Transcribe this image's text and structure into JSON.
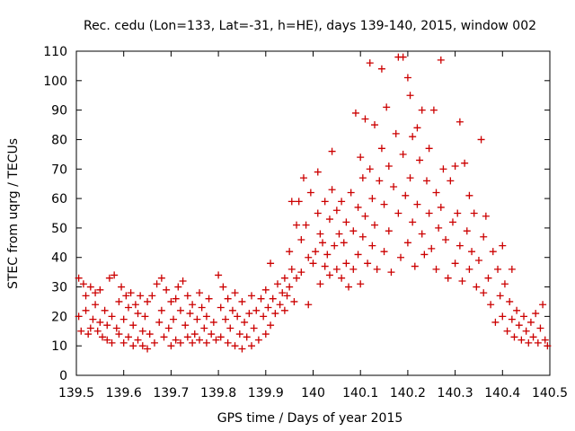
{
  "chart_data": {
    "type": "scatter",
    "title": "Rec. cedu (Lon=133, Lat=-31, h=HE), days 139-140, 2015, window 002",
    "xlabel": "GPS time / Days of year 2015",
    "ylabel": "STEC from uqrg / TECUs",
    "xlim": [
      139.5,
      140.5
    ],
    "ylim": [
      0,
      110
    ],
    "xticks": [
      139.5,
      139.6,
      139.7,
      139.8,
      139.9,
      140,
      140.1,
      140.2,
      140.3,
      140.4,
      140.5
    ],
    "xtick_labels": [
      "139.5",
      "139.6",
      "139.7",
      "139.8",
      "139.9",
      "140",
      "140.1",
      "140.2",
      "140.3",
      "140.4",
      "140.5"
    ],
    "yticks": [
      0,
      10,
      20,
      30,
      40,
      50,
      60,
      70,
      80,
      90,
      100,
      110
    ],
    "ytick_labels": [
      "0",
      "10",
      "20",
      "30",
      "40",
      "50",
      "60",
      "70",
      "80",
      "90",
      "100",
      "110"
    ],
    "marker": "+",
    "color": "#cc0000",
    "grid": false,
    "points": [
      [
        139.505,
        33
      ],
      [
        139.505,
        20
      ],
      [
        139.51,
        15
      ],
      [
        139.515,
        31
      ],
      [
        139.52,
        27
      ],
      [
        139.52,
        22
      ],
      [
        139.525,
        14
      ],
      [
        139.53,
        30
      ],
      [
        139.53,
        16
      ],
      [
        139.535,
        19
      ],
      [
        139.54,
        28
      ],
      [
        139.54,
        24
      ],
      [
        139.545,
        15
      ],
      [
        139.55,
        29
      ],
      [
        139.55,
        18
      ],
      [
        139.555,
        13
      ],
      [
        139.56,
        22
      ],
      [
        139.565,
        17
      ],
      [
        139.565,
        12
      ],
      [
        139.57,
        33
      ],
      [
        139.575,
        20
      ],
      [
        139.575,
        11
      ],
      [
        139.58,
        34
      ],
      [
        139.585,
        16
      ],
      [
        139.59,
        25
      ],
      [
        139.59,
        14
      ],
      [
        139.595,
        30
      ],
      [
        139.6,
        19
      ],
      [
        139.6,
        11
      ],
      [
        139.605,
        27
      ],
      [
        139.61,
        23
      ],
      [
        139.61,
        13
      ],
      [
        139.615,
        28
      ],
      [
        139.62,
        17
      ],
      [
        139.62,
        10
      ],
      [
        139.625,
        24
      ],
      [
        139.63,
        21
      ],
      [
        139.63,
        12
      ],
      [
        139.635,
        27
      ],
      [
        139.64,
        15
      ],
      [
        139.64,
        10
      ],
      [
        139.645,
        20
      ],
      [
        139.65,
        25
      ],
      [
        139.65,
        9
      ],
      [
        139.655,
        14
      ],
      [
        139.66,
        27
      ],
      [
        139.665,
        11
      ],
      [
        139.67,
        31
      ],
      [
        139.675,
        18
      ],
      [
        139.68,
        33
      ],
      [
        139.68,
        22
      ],
      [
        139.685,
        13
      ],
      [
        139.69,
        29
      ],
      [
        139.695,
        16
      ],
      [
        139.7,
        25
      ],
      [
        139.7,
        10
      ],
      [
        139.705,
        19
      ],
      [
        139.71,
        26
      ],
      [
        139.71,
        12
      ],
      [
        139.715,
        30
      ],
      [
        139.72,
        22
      ],
      [
        139.72,
        11
      ],
      [
        139.725,
        32
      ],
      [
        139.73,
        17
      ],
      [
        139.735,
        27
      ],
      [
        139.735,
        13
      ],
      [
        139.74,
        21
      ],
      [
        139.745,
        24
      ],
      [
        139.745,
        11
      ],
      [
        139.75,
        14
      ],
      [
        139.755,
        19
      ],
      [
        139.76,
        28
      ],
      [
        139.76,
        12
      ],
      [
        139.765,
        23
      ],
      [
        139.77,
        16
      ],
      [
        139.775,
        20
      ],
      [
        139.775,
        11
      ],
      [
        139.78,
        26
      ],
      [
        139.785,
        14
      ],
      [
        139.79,
        18
      ],
      [
        139.795,
        12
      ],
      [
        139.8,
        34
      ],
      [
        139.805,
        23
      ],
      [
        139.805,
        13
      ],
      [
        139.81,
        30
      ],
      [
        139.815,
        19
      ],
      [
        139.82,
        26
      ],
      [
        139.82,
        11
      ],
      [
        139.825,
        16
      ],
      [
        139.83,
        22
      ],
      [
        139.835,
        28
      ],
      [
        139.835,
        10
      ],
      [
        139.84,
        20
      ],
      [
        139.845,
        14
      ],
      [
        139.85,
        25
      ],
      [
        139.85,
        9
      ],
      [
        139.855,
        18
      ],
      [
        139.86,
        13
      ],
      [
        139.865,
        21
      ],
      [
        139.87,
        27
      ],
      [
        139.87,
        10
      ],
      [
        139.875,
        16
      ],
      [
        139.88,
        22
      ],
      [
        139.885,
        12
      ],
      [
        139.89,
        26
      ],
      [
        139.895,
        20
      ],
      [
        139.9,
        29
      ],
      [
        139.9,
        14
      ],
      [
        139.905,
        23
      ],
      [
        139.91,
        38
      ],
      [
        139.91,
        17
      ],
      [
        139.915,
        26
      ],
      [
        139.92,
        21
      ],
      [
        139.925,
        31
      ],
      [
        139.93,
        24
      ],
      [
        139.935,
        28
      ],
      [
        139.94,
        33
      ],
      [
        139.94,
        22
      ],
      [
        139.945,
        27
      ],
      [
        139.95,
        42
      ],
      [
        139.95,
        30
      ],
      [
        139.955,
        59
      ],
      [
        139.955,
        36
      ],
      [
        139.96,
        25
      ],
      [
        139.965,
        51
      ],
      [
        139.965,
        33
      ],
      [
        139.97,
        59
      ],
      [
        139.975,
        46
      ],
      [
        139.975,
        35
      ],
      [
        139.98,
        67
      ],
      [
        139.985,
        51
      ],
      [
        139.99,
        40
      ],
      [
        139.99,
        24
      ],
      [
        139.995,
        62
      ],
      [
        140.0,
        38
      ],
      [
        140.005,
        42
      ],
      [
        140.01,
        69
      ],
      [
        140.01,
        55
      ],
      [
        140.015,
        48
      ],
      [
        140.015,
        31
      ],
      [
        140.02,
        45
      ],
      [
        140.025,
        59
      ],
      [
        140.025,
        37
      ],
      [
        140.03,
        41
      ],
      [
        140.035,
        53
      ],
      [
        140.035,
        34
      ],
      [
        140.04,
        76
      ],
      [
        140.04,
        63
      ],
      [
        140.045,
        44
      ],
      [
        140.05,
        56
      ],
      [
        140.05,
        36
      ],
      [
        140.055,
        48
      ],
      [
        140.06,
        59
      ],
      [
        140.06,
        33
      ],
      [
        140.065,
        45
      ],
      [
        140.07,
        52
      ],
      [
        140.07,
        38
      ],
      [
        140.075,
        30
      ],
      [
        140.08,
        62
      ],
      [
        140.085,
        49
      ],
      [
        140.085,
        36
      ],
      [
        140.09,
        89
      ],
      [
        140.095,
        57
      ],
      [
        140.095,
        41
      ],
      [
        140.1,
        74
      ],
      [
        140.1,
        31
      ],
      [
        140.105,
        67
      ],
      [
        140.105,
        47
      ],
      [
        140.11,
        87
      ],
      [
        140.11,
        54
      ],
      [
        140.115,
        38
      ],
      [
        140.12,
        106
      ],
      [
        140.12,
        70
      ],
      [
        140.125,
        60
      ],
      [
        140.125,
        44
      ],
      [
        140.13,
        85
      ],
      [
        140.13,
        51
      ],
      [
        140.135,
        36
      ],
      [
        140.14,
        66
      ],
      [
        140.145,
        104
      ],
      [
        140.145,
        77
      ],
      [
        140.15,
        58
      ],
      [
        140.15,
        42
      ],
      [
        140.155,
        91
      ],
      [
        140.16,
        71
      ],
      [
        140.16,
        49
      ],
      [
        140.165,
        35
      ],
      [
        140.17,
        64
      ],
      [
        140.175,
        82
      ],
      [
        140.18,
        108
      ],
      [
        140.18,
        55
      ],
      [
        140.185,
        40
      ],
      [
        140.19,
        108
      ],
      [
        140.19,
        75
      ],
      [
        140.195,
        61
      ],
      [
        140.2,
        101
      ],
      [
        140.2,
        45
      ],
      [
        140.205,
        95
      ],
      [
        140.205,
        67
      ],
      [
        140.21,
        81
      ],
      [
        140.21,
        52
      ],
      [
        140.215,
        37
      ],
      [
        140.22,
        84
      ],
      [
        140.22,
        58
      ],
      [
        140.225,
        73
      ],
      [
        140.23,
        90
      ],
      [
        140.23,
        48
      ],
      [
        140.235,
        41
      ],
      [
        140.24,
        66
      ],
      [
        140.245,
        77
      ],
      [
        140.245,
        55
      ],
      [
        140.25,
        43
      ],
      [
        140.255,
        90
      ],
      [
        140.26,
        62
      ],
      [
        140.26,
        36
      ],
      [
        140.265,
        50
      ],
      [
        140.27,
        107
      ],
      [
        140.27,
        57
      ],
      [
        140.275,
        70
      ],
      [
        140.28,
        46
      ],
      [
        140.285,
        33
      ],
      [
        140.29,
        66
      ],
      [
        140.295,
        52
      ],
      [
        140.3,
        71
      ],
      [
        140.3,
        38
      ],
      [
        140.305,
        55
      ],
      [
        140.31,
        86
      ],
      [
        140.31,
        44
      ],
      [
        140.315,
        32
      ],
      [
        140.32,
        72
      ],
      [
        140.325,
        49
      ],
      [
        140.33,
        61
      ],
      [
        140.33,
        36
      ],
      [
        140.335,
        42
      ],
      [
        140.34,
        55
      ],
      [
        140.345,
        30
      ],
      [
        140.35,
        39
      ],
      [
        140.355,
        80
      ],
      [
        140.36,
        47
      ],
      [
        140.36,
        28
      ],
      [
        140.365,
        54
      ],
      [
        140.37,
        33
      ],
      [
        140.375,
        24
      ],
      [
        140.38,
        42
      ],
      [
        140.385,
        18
      ],
      [
        140.39,
        36
      ],
      [
        140.395,
        27
      ],
      [
        140.4,
        44
      ],
      [
        140.4,
        20
      ],
      [
        140.405,
        31
      ],
      [
        140.41,
        15
      ],
      [
        140.415,
        25
      ],
      [
        140.42,
        36
      ],
      [
        140.42,
        19
      ],
      [
        140.425,
        13
      ],
      [
        140.43,
        22
      ],
      [
        140.435,
        17
      ],
      [
        140.44,
        12
      ],
      [
        140.445,
        20
      ],
      [
        140.45,
        15
      ],
      [
        140.455,
        11
      ],
      [
        140.46,
        18
      ],
      [
        140.465,
        13
      ],
      [
        140.47,
        21
      ],
      [
        140.475,
        11
      ],
      [
        140.48,
        16
      ],
      [
        140.485,
        24
      ],
      [
        140.49,
        12
      ],
      [
        140.495,
        10
      ]
    ]
  }
}
